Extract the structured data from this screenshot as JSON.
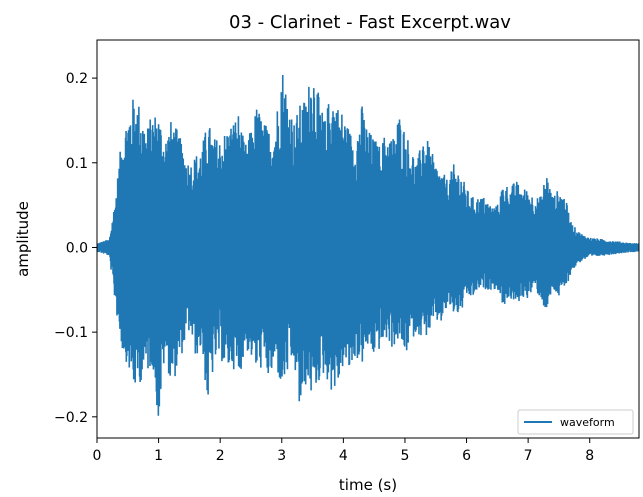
{
  "chart_data": {
    "type": "line",
    "title": "03 - Clarinet - Fast Excerpt.wav",
    "xlabel": "time (s)",
    "ylabel": "amplitude",
    "xlim": [
      0,
      8.8
    ],
    "ylim": [
      -0.225,
      0.245
    ],
    "xticks": [
      0,
      1,
      2,
      3,
      4,
      5,
      6,
      7,
      8
    ],
    "xtick_labels": [
      "0",
      "1",
      "2",
      "3",
      "4",
      "5",
      "6",
      "7",
      "8"
    ],
    "yticks": [
      0.2,
      0.1,
      0.0,
      -0.1,
      -0.2
    ],
    "ytick_labels": [
      "0.2",
      "0.1",
      "0.0",
      "−0.1",
      "−0.2"
    ],
    "grid": false,
    "legend_position": "lower-right",
    "series": [
      {
        "name": "waveform",
        "color": "#1f77b4",
        "envelope_time": [
          0,
          0.2,
          0.3,
          0.4,
          0.5,
          0.6,
          0.7,
          0.8,
          0.9,
          1.0,
          1.1,
          1.2,
          1.3,
          1.4,
          1.5,
          1.6,
          1.7,
          1.8,
          1.9,
          2.0,
          2.1,
          2.2,
          2.3,
          2.4,
          2.5,
          2.6,
          2.7,
          2.8,
          2.9,
          3.0,
          3.1,
          3.2,
          3.3,
          3.4,
          3.5,
          3.6,
          3.7,
          3.8,
          3.9,
          4.0,
          4.1,
          4.2,
          4.3,
          4.4,
          4.5,
          4.6,
          4.7,
          4.8,
          4.9,
          5.0,
          5.1,
          5.2,
          5.3,
          5.4,
          5.5,
          5.6,
          5.7,
          5.8,
          5.9,
          6.0,
          6.1,
          6.2,
          6.3,
          6.4,
          6.5,
          6.6,
          6.7,
          6.8,
          6.9,
          7.0,
          7.1,
          7.2,
          7.3,
          7.4,
          7.5,
          7.6,
          7.7,
          7.8,
          7.9,
          8.0,
          8.2,
          8.4,
          8.6,
          8.8
        ],
        "envelope_max": [
          0.005,
          0.01,
          0.06,
          0.13,
          0.16,
          0.18,
          0.17,
          0.14,
          0.16,
          0.16,
          0.13,
          0.15,
          0.14,
          0.12,
          0.1,
          0.11,
          0.12,
          0.15,
          0.13,
          0.13,
          0.14,
          0.15,
          0.16,
          0.12,
          0.14,
          0.17,
          0.15,
          0.14,
          0.15,
          0.22,
          0.18,
          0.15,
          0.17,
          0.18,
          0.22,
          0.18,
          0.15,
          0.19,
          0.17,
          0.16,
          0.14,
          0.13,
          0.17,
          0.14,
          0.13,
          0.12,
          0.14,
          0.13,
          0.16,
          0.14,
          0.12,
          0.1,
          0.14,
          0.12,
          0.1,
          0.09,
          0.08,
          0.1,
          0.09,
          0.07,
          0.06,
          0.06,
          0.06,
          0.05,
          0.05,
          0.08,
          0.07,
          0.08,
          0.07,
          0.07,
          0.06,
          0.06,
          0.09,
          0.06,
          0.07,
          0.06,
          0.03,
          0.02,
          0.015,
          0.012,
          0.01,
          0.008,
          0.006,
          0.005
        ],
        "envelope_min": [
          -0.005,
          -0.01,
          -0.07,
          -0.12,
          -0.14,
          -0.17,
          -0.16,
          -0.15,
          -0.14,
          -0.21,
          -0.13,
          -0.16,
          -0.15,
          -0.12,
          -0.1,
          -0.13,
          -0.12,
          -0.19,
          -0.14,
          -0.13,
          -0.15,
          -0.14,
          -0.16,
          -0.12,
          -0.13,
          -0.15,
          -0.14,
          -0.16,
          -0.14,
          -0.17,
          -0.15,
          -0.14,
          -0.2,
          -0.16,
          -0.18,
          -0.16,
          -0.15,
          -0.17,
          -0.17,
          -0.14,
          -0.15,
          -0.13,
          -0.14,
          -0.12,
          -0.13,
          -0.12,
          -0.11,
          -0.12,
          -0.11,
          -0.13,
          -0.11,
          -0.1,
          -0.11,
          -0.1,
          -0.09,
          -0.09,
          -0.07,
          -0.08,
          -0.08,
          -0.06,
          -0.06,
          -0.05,
          -0.05,
          -0.05,
          -0.05,
          -0.07,
          -0.06,
          -0.07,
          -0.06,
          -0.06,
          -0.05,
          -0.06,
          -0.08,
          -0.05,
          -0.06,
          -0.05,
          -0.03,
          -0.02,
          -0.015,
          -0.012,
          -0.01,
          -0.008,
          -0.006,
          -0.005
        ]
      }
    ]
  }
}
